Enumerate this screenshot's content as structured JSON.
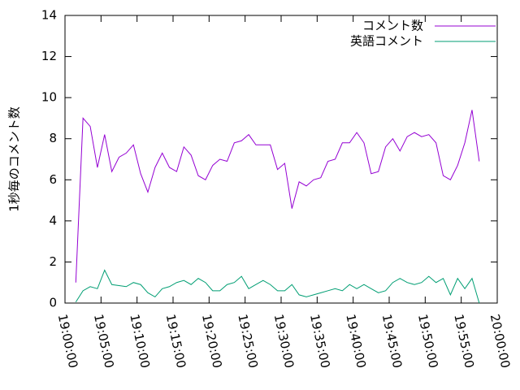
{
  "chart_data": {
    "type": "line",
    "ylabel": "1秒毎のコメント数",
    "x": [
      "19:01:30",
      "19:02:30",
      "19:03:30",
      "19:04:30",
      "19:05:30",
      "19:06:30",
      "19:07:30",
      "19:08:30",
      "19:09:30",
      "19:10:30",
      "19:11:30",
      "19:12:30",
      "19:13:30",
      "19:14:30",
      "19:15:30",
      "19:16:30",
      "19:17:30",
      "19:18:30",
      "19:19:30",
      "19:20:30",
      "19:21:30",
      "19:22:30",
      "19:23:30",
      "19:24:30",
      "19:25:30",
      "19:26:30",
      "19:27:30",
      "19:28:30",
      "19:29:30",
      "19:30:30",
      "19:31:30",
      "19:32:30",
      "19:33:30",
      "19:34:30",
      "19:35:30",
      "19:36:30",
      "19:37:30",
      "19:38:30",
      "19:39:30",
      "19:40:30",
      "19:41:30",
      "19:42:30",
      "19:43:30",
      "19:44:30",
      "19:45:30",
      "19:46:30",
      "19:47:30",
      "19:48:30",
      "19:49:30",
      "19:50:30",
      "19:51:30",
      "19:52:30",
      "19:53:30",
      "19:54:30",
      "19:55:30",
      "19:56:30",
      "19:57:30"
    ],
    "series": [
      {
        "name": "コメント数",
        "color": "#9400d3",
        "values": [
          1.0,
          9.0,
          8.6,
          6.6,
          8.2,
          6.4,
          7.1,
          7.3,
          7.7,
          6.3,
          5.4,
          6.6,
          7.3,
          6.6,
          6.4,
          7.6,
          7.2,
          6.2,
          6.0,
          6.7,
          7.0,
          6.9,
          7.8,
          7.9,
          8.2,
          7.7,
          7.7,
          7.7,
          6.5,
          6.8,
          4.6,
          5.9,
          5.7,
          6.0,
          6.1,
          6.9,
          7.0,
          7.8,
          7.8,
          8.3,
          7.8,
          6.3,
          6.4,
          7.6,
          8.0,
          7.4,
          8.1,
          8.3,
          8.1,
          8.2,
          7.8,
          6.2,
          6.0,
          6.7,
          7.8,
          9.4,
          6.9
        ]
      },
      {
        "name": "英語コメント",
        "color": "#009e73",
        "values": [
          0.05,
          0.6,
          0.8,
          0.7,
          1.6,
          0.9,
          0.85,
          0.8,
          1.0,
          0.9,
          0.5,
          0.3,
          0.7,
          0.8,
          1.0,
          1.1,
          0.9,
          1.2,
          1.0,
          0.6,
          0.6,
          0.9,
          1.0,
          1.3,
          0.7,
          0.9,
          1.1,
          0.9,
          0.6,
          0.6,
          0.9,
          0.4,
          0.3,
          0.4,
          0.5,
          0.6,
          0.7,
          0.6,
          0.9,
          0.7,
          0.9,
          0.7,
          0.5,
          0.6,
          1.0,
          1.2,
          1.0,
          0.9,
          1.0,
          1.3,
          1.0,
          1.2,
          0.4,
          1.2,
          0.7,
          1.2,
          0.0
        ]
      }
    ],
    "xlim": [
      "19:00:00",
      "20:00:00"
    ],
    "xticks": [
      "19:00:00",
      "19:05:00",
      "19:10:00",
      "19:15:00",
      "19:20:00",
      "19:25:00",
      "19:30:00",
      "19:35:00",
      "19:40:00",
      "19:45:00",
      "19:50:00",
      "19:55:00",
      "20:00:00"
    ],
    "ylim": [
      0,
      14
    ],
    "yticks": [
      0,
      2,
      4,
      6,
      8,
      10,
      12,
      14
    ],
    "legend": "top-right"
  }
}
